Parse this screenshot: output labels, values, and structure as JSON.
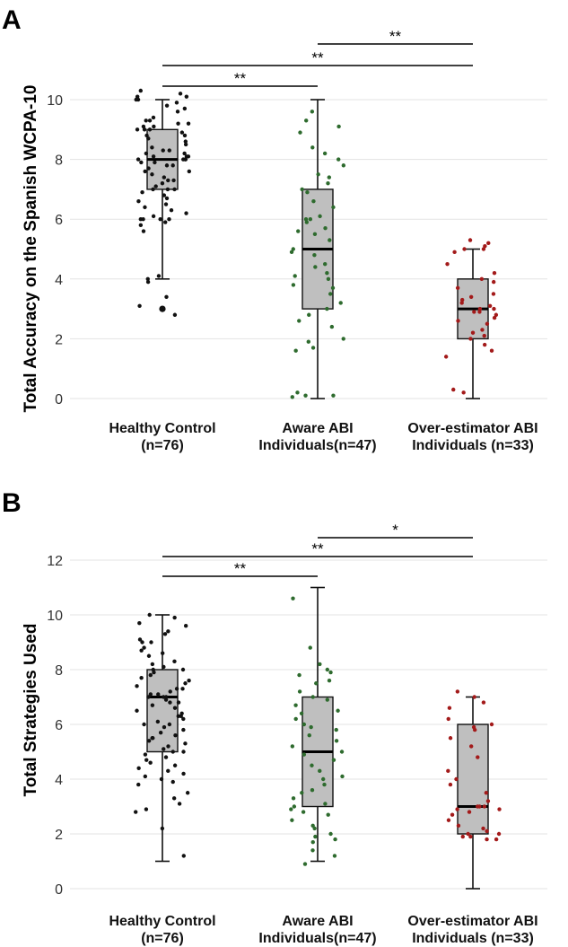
{
  "chart_data": [
    {
      "type": "box",
      "panel_label": "A",
      "ylabel": "Total Accuracy on the Spanish WCPA-10",
      "ylim": [
        0,
        10
      ],
      "yticks": [
        "0",
        "2",
        "4",
        "6",
        "8",
        "10"
      ],
      "grid": true,
      "category_labels": [
        [
          "Healthy Control",
          "(n=76)"
        ],
        [
          "Aware ABI",
          "Individuals(n=47)"
        ],
        [
          "Over-estimator ABI",
          "Individuals (n=33)"
        ]
      ],
      "groups": [
        {
          "name": "Healthy Control (n=76)",
          "color": "#111111",
          "box": {
            "min": 4,
            "q1": 7,
            "median": 8,
            "q3": 9,
            "max": 10
          },
          "outliers": [
            3
          ],
          "points": [
            10.3,
            10.2,
            10.1,
            10.1,
            10,
            10,
            9.9,
            9.8,
            9.7,
            9.6,
            9.4,
            9.3,
            9.3,
            9.2,
            9.2,
            9.1,
            9.1,
            9,
            9,
            9,
            8.9,
            8.8,
            8.8,
            8.7,
            8.6,
            8.5,
            8.4,
            8.3,
            8.3,
            8.2,
            8.2,
            8.1,
            8.1,
            8.1,
            8,
            8,
            8,
            8,
            7.9,
            7.9,
            7.8,
            7.8,
            7.7,
            7.6,
            7.6,
            7.5,
            7.4,
            7.3,
            7.3,
            7.2,
            7.1,
            7,
            7,
            7,
            6.9,
            6.8,
            6.6,
            6.5,
            6.4,
            6.3,
            6.2,
            6.1,
            6,
            6,
            6,
            6,
            5.9,
            5.8,
            5.6,
            4.1,
            4,
            3.9,
            3.4,
            3.1,
            2.8,
            6.7
          ]
        },
        {
          "name": "Aware ABI Individuals (n=47)",
          "color": "#2e6b2e",
          "box": {
            "min": 0,
            "q1": 3,
            "median": 5,
            "q3": 7,
            "max": 10
          },
          "outliers": [],
          "points": [
            9.6,
            9.3,
            9.1,
            8.9,
            8.4,
            8.2,
            8,
            7.8,
            7.5,
            7.4,
            7.2,
            7,
            6.9,
            6.6,
            6.4,
            6.1,
            6,
            6,
            5.9,
            5.7,
            5.6,
            5.5,
            5.3,
            5,
            4.9,
            4.8,
            4.5,
            4.4,
            4.2,
            4.1,
            4,
            3.8,
            3.7,
            3.5,
            3.2,
            3,
            2.8,
            2.6,
            2.4,
            2,
            1.9,
            1.7,
            1.6,
            0.2,
            0.1,
            0.1,
            0.05
          ]
        },
        {
          "name": "Over-estimator ABI Individuals (n=33)",
          "color": "#a31a1a",
          "box": {
            "min": 0,
            "q1": 2,
            "median": 3,
            "q3": 4,
            "max": 5
          },
          "outliers": [],
          "points": [
            5.3,
            5.2,
            5.1,
            5,
            5,
            4.9,
            4.5,
            4.2,
            4,
            3.9,
            3.7,
            3.5,
            3.4,
            3.3,
            3.2,
            3.1,
            3,
            3,
            2.9,
            2.9,
            2.8,
            2.7,
            2.6,
            2.5,
            2.3,
            2.2,
            2.1,
            2,
            1.8,
            1.6,
            1.4,
            0.3,
            0.2
          ]
        }
      ],
      "significance": [
        {
          "from": 0,
          "to": 1,
          "label": "**"
        },
        {
          "from": 0,
          "to": 2,
          "label": "**"
        },
        {
          "from": 1,
          "to": 2,
          "label": "**"
        }
      ]
    },
    {
      "type": "box",
      "panel_label": "B",
      "ylabel": "Total Strategies Used",
      "ylim": [
        0,
        12
      ],
      "yticks": [
        "0",
        "2",
        "4",
        "6",
        "8",
        "10",
        "12"
      ],
      "grid": true,
      "category_labels": [
        [
          "Healthy Control",
          "(n=76)"
        ],
        [
          "Aware ABI",
          "Individuals(n=47)"
        ],
        [
          "Over-estimator ABI",
          "Individuals (n=33)"
        ]
      ],
      "groups": [
        {
          "name": "Healthy Control (n=76)",
          "color": "#111111",
          "box": {
            "min": 1,
            "q1": 5,
            "median": 7,
            "q3": 8,
            "max": 10
          },
          "outliers": [],
          "points": [
            10,
            9.9,
            9.7,
            9.6,
            9.4,
            9.3,
            9.1,
            9,
            9,
            8.8,
            8.7,
            8.5,
            8.3,
            8.2,
            8.1,
            8,
            8,
            7.9,
            7.8,
            7.7,
            7.6,
            7.5,
            7.4,
            7.3,
            7.3,
            7.2,
            7.1,
            7,
            7,
            7,
            6.9,
            6.8,
            6.8,
            6.7,
            6.6,
            6.5,
            6.4,
            6.3,
            6.2,
            6.1,
            6,
            6,
            5.9,
            5.8,
            5.7,
            5.6,
            5.5,
            5.4,
            5.3,
            5.2,
            5.1,
            5,
            5,
            4.9,
            4.8,
            4.7,
            4.6,
            4.5,
            4.4,
            4.3,
            4.2,
            4.1,
            4,
            3.9,
            3.8,
            3.5,
            3.3,
            3.1,
            2.9,
            2.8,
            2.2,
            1.2,
            8.6,
            6.3,
            5.5,
            7.1
          ]
        },
        {
          "name": "Aware ABI Individuals (n=47)",
          "color": "#2e6b2e",
          "box": {
            "min": 1,
            "q1": 3,
            "median": 5,
            "q3": 7,
            "max": 11
          },
          "outliers": [],
          "points": [
            10.6,
            8.8,
            8.2,
            8,
            7.9,
            7.8,
            7.6,
            7.5,
            7.2,
            7,
            6.9,
            6.7,
            6.5,
            6.4,
            6.2,
            6,
            5.9,
            5.8,
            5.6,
            5.4,
            5.2,
            5,
            4.9,
            4.7,
            4.5,
            4.3,
            4.1,
            4,
            3.8,
            3.6,
            3.5,
            3.3,
            3.1,
            3,
            2.9,
            2.8,
            2.7,
            2.5,
            2.3,
            2.2,
            2,
            1.9,
            1.8,
            1.7,
            1.4,
            1.2,
            0.9
          ]
        },
        {
          "name": "Over-estimator ABI Individuals (n=33)",
          "color": "#a31a1a",
          "box": {
            "min": 0,
            "q1": 2,
            "median": 3,
            "q3": 6,
            "max": 7
          },
          "outliers": [],
          "points": [
            7.2,
            7,
            6.8,
            6.6,
            6.2,
            6,
            5.9,
            5.8,
            5.5,
            5.2,
            4.8,
            4.3,
            4,
            3.8,
            3.5,
            3.2,
            3,
            3,
            3,
            2.9,
            2.8,
            2.7,
            2.5,
            2.3,
            2.2,
            2.1,
            2,
            2,
            1.9,
            1.9,
            1.8,
            1.8,
            2.9
          ]
        }
      ],
      "significance": [
        {
          "from": 0,
          "to": 1,
          "label": "**"
        },
        {
          "from": 0,
          "to": 2,
          "label": "**"
        },
        {
          "from": 1,
          "to": 2,
          "label": "*"
        }
      ]
    }
  ]
}
